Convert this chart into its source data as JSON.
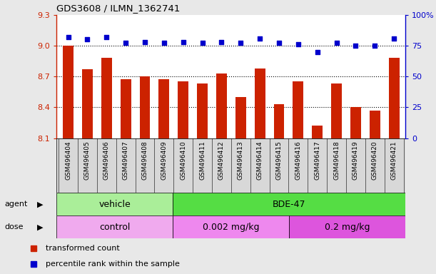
{
  "title": "GDS3608 / ILMN_1362741",
  "samples": [
    "GSM496404",
    "GSM496405",
    "GSM496406",
    "GSM496407",
    "GSM496408",
    "GSM496409",
    "GSM496410",
    "GSM496411",
    "GSM496412",
    "GSM496413",
    "GSM496414",
    "GSM496415",
    "GSM496416",
    "GSM496417",
    "GSM496418",
    "GSM496419",
    "GSM496420",
    "GSM496421"
  ],
  "bar_values": [
    9.0,
    8.77,
    8.88,
    8.67,
    8.7,
    8.67,
    8.65,
    8.63,
    8.73,
    8.5,
    8.78,
    8.43,
    8.65,
    8.22,
    8.63,
    8.4,
    8.37,
    8.88
  ],
  "percentile_values": [
    82,
    80,
    82,
    77,
    78,
    77,
    78,
    77,
    78,
    77,
    81,
    77,
    76,
    70,
    77,
    75,
    75,
    81
  ],
  "bar_color": "#cc2200",
  "percentile_color": "#0000cc",
  "ylim_left": [
    8.1,
    9.3
  ],
  "ylim_right": [
    0,
    100
  ],
  "yticks_left": [
    8.1,
    8.4,
    8.7,
    9.0,
    9.3
  ],
  "yticks_right": [
    0,
    25,
    50,
    75,
    100
  ],
  "grid_values": [
    8.4,
    8.7,
    9.0
  ],
  "agent_groups": [
    {
      "label": "vehicle",
      "start": 0,
      "end": 6,
      "color": "#aaee99"
    },
    {
      "label": "BDE-47",
      "start": 6,
      "end": 18,
      "color": "#55dd44"
    }
  ],
  "dose_groups": [
    {
      "label": "control",
      "start": 0,
      "end": 6,
      "color": "#f0aaee"
    },
    {
      "label": "0.002 mg/kg",
      "start": 6,
      "end": 12,
      "color": "#ee88ee"
    },
    {
      "label": "0.2 mg/kg",
      "start": 12,
      "end": 18,
      "color": "#dd55dd"
    }
  ],
  "legend_items": [
    {
      "label": "transformed count",
      "color": "#cc2200"
    },
    {
      "label": "percentile rank within the sample",
      "color": "#0000cc"
    }
  ],
  "fig_bg": "#e8e8e8",
  "plot_bg": "#ffffff",
  "xtick_bg": "#d8d8d8"
}
